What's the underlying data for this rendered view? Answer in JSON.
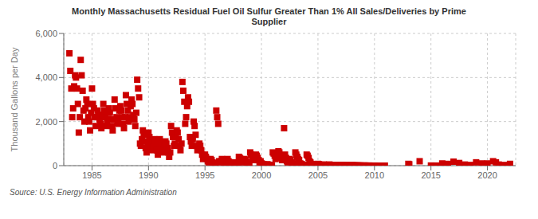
{
  "chart_data": {
    "type": "scatter",
    "title": "Monthly Massachusetts Residual Fuel Oil Sulfur Greater Than 1% All Sales/Deliveries by Prime\nSupplier",
    "ylabel": "Thousand Gallons per Day",
    "annotations": [
      "Source: U.S. Energy Information Administration"
    ],
    "color": "#cc0000",
    "marker": "square",
    "grid": true,
    "xlim": [
      1982.5,
      2022.5
    ],
    "xticks": [
      1985,
      1990,
      1995,
      2000,
      2005,
      2010,
      2015,
      2020
    ],
    "ylim": [
      0,
      6000
    ],
    "yticks": [
      0,
      {
        "value": 2000,
        "label": "2,000"
      },
      {
        "value": 4000,
        "label": "4,000"
      },
      {
        "value": 6000,
        "label": "6,000"
      }
    ],
    "x": [
      1983.0,
      1983.08,
      1983.17,
      1983.25,
      1983.33,
      1983.42,
      1983.5,
      1983.58,
      1983.67,
      1983.75,
      1983.83,
      1983.92,
      1984.0,
      1984.08,
      1984.17,
      1984.25,
      1984.33,
      1984.42,
      1984.5,
      1984.58,
      1984.67,
      1984.75,
      1984.83,
      1984.92,
      1985.0,
      1985.08,
      1985.17,
      1985.25,
      1985.33,
      1985.42,
      1985.5,
      1985.58,
      1985.67,
      1985.75,
      1985.83,
      1985.92,
      1986.0,
      1986.08,
      1986.17,
      1986.25,
      1986.33,
      1986.42,
      1986.5,
      1986.58,
      1986.67,
      1986.75,
      1986.83,
      1986.92,
      1987.0,
      1987.08,
      1987.17,
      1987.25,
      1987.33,
      1987.42,
      1987.5,
      1987.58,
      1987.67,
      1987.75,
      1987.83,
      1987.92,
      1988.0,
      1988.08,
      1988.17,
      1988.25,
      1988.33,
      1988.42,
      1988.5,
      1988.58,
      1988.67,
      1988.75,
      1988.83,
      1988.92,
      1989.0,
      1989.08,
      1989.17,
      1989.25,
      1989.33,
      1989.42,
      1989.5,
      1989.58,
      1989.67,
      1989.75,
      1989.83,
      1989.92,
      1990.0,
      1990.08,
      1990.17,
      1990.25,
      1990.33,
      1990.42,
      1990.5,
      1990.58,
      1990.67,
      1990.75,
      1990.83,
      1990.92,
      1991.0,
      1991.08,
      1991.17,
      1991.25,
      1991.33,
      1991.42,
      1991.5,
      1991.58,
      1991.67,
      1991.75,
      1991.83,
      1991.92,
      1992.0,
      1992.08,
      1992.17,
      1992.25,
      1992.33,
      1992.42,
      1992.5,
      1992.58,
      1992.67,
      1992.75,
      1992.83,
      1992.92,
      1993.0,
      1993.08,
      1993.17,
      1993.25,
      1993.33,
      1993.42,
      1993.5,
      1993.58,
      1993.67,
      1993.75,
      1993.83,
      1993.92,
      1994.0,
      1994.08,
      1994.17,
      1994.25,
      1994.33,
      1994.42,
      1994.5,
      1994.58,
      1994.67,
      1994.75,
      1994.83,
      1994.92,
      1995.0,
      1995.08,
      1995.17,
      1995.25,
      1995.33,
      1995.42,
      1995.5,
      1995.58,
      1995.67,
      1995.75,
      1995.83,
      1995.92,
      1996.0,
      1996.08,
      1996.17,
      1996.25,
      1996.33,
      1996.42,
      1996.5,
      1996.58,
      1996.67,
      1996.75,
      1996.83,
      1996.92,
      1997.0,
      1997.08,
      1997.17,
      1997.25,
      1997.33,
      1997.42,
      1997.5,
      1997.58,
      1997.67,
      1997.75,
      1997.83,
      1997.92,
      1998.0,
      1998.08,
      1998.17,
      1998.25,
      1998.33,
      1998.42,
      1998.5,
      1998.58,
      1998.67,
      1998.75,
      1998.83,
      1998.92,
      1999.0,
      1999.08,
      1999.17,
      1999.25,
      1999.33,
      1999.42,
      1999.5,
      1999.58,
      1999.67,
      1999.75,
      1999.83,
      1999.92,
      2000.0,
      2000.08,
      2000.17,
      2000.25,
      2000.33,
      2000.42,
      2000.5,
      2000.58,
      2000.67,
      2000.75,
      2000.83,
      2000.92,
      2001.0,
      2001.08,
      2001.17,
      2001.25,
      2001.33,
      2001.42,
      2001.5,
      2001.58,
      2001.67,
      2001.75,
      2001.83,
      2001.92,
      2002.0,
      2002.08,
      2002.17,
      2002.25,
      2002.33,
      2002.42,
      2002.5,
      2002.58,
      2002.67,
      2002.75,
      2002.83,
      2002.92,
      2003.0,
      2003.08,
      2003.17,
      2003.25,
      2003.33,
      2003.42,
      2003.5,
      2003.58,
      2003.67,
      2003.75,
      2003.83,
      2003.92,
      2004.0,
      2004.08,
      2004.17,
      2004.25,
      2004.33,
      2004.42,
      2004.5,
      2004.58,
      2004.67,
      2004.75,
      2004.83,
      2004.92,
      2005.0,
      2005.08,
      2005.17,
      2005.25,
      2005.33,
      2005.42,
      2005.5,
      2005.58,
      2005.67,
      2005.75,
      2005.83,
      2005.92,
      2006.0,
      2006.08,
      2006.17,
      2006.25,
      2006.33,
      2006.42,
      2006.5,
      2006.58,
      2006.67,
      2006.75,
      2006.83,
      2006.92,
      2007.0,
      2007.08,
      2007.17,
      2007.25,
      2007.33,
      2007.42,
      2007.5,
      2007.58,
      2007.67,
      2007.75,
      2007.83,
      2007.92,
      2008.0,
      2008.08,
      2008.17,
      2008.25,
      2008.33,
      2008.42,
      2008.5,
      2008.58,
      2008.67,
      2008.75,
      2008.83,
      2008.92,
      2009.0,
      2009.08,
      2009.17,
      2009.25,
      2009.33,
      2009.42,
      2009.5,
      2009.58,
      2009.67,
      2009.75,
      2009.83,
      2009.92,
      2010.0,
      2010.08,
      2010.17,
      2010.25,
      2010.33,
      2010.42,
      2010.5,
      2010.58,
      2010.67,
      2010.75,
      2010.83,
      2010.92,
      2013.0,
      2013.08,
      2014.0,
      2015.0,
      2015.5,
      2016.0,
      2016.5,
      2017.0,
      2017.5,
      2018.0,
      2018.5,
      2019.0,
      2019.5,
      2020.0,
      2020.5,
      2020.75,
      2021.0,
      2021.5,
      2022.0
    ],
    "values": [
      5100,
      4300,
      3500,
      2200,
      2600,
      3600,
      4100,
      4000,
      3500,
      2800,
      1500,
      2200,
      4800,
      4100,
      3400,
      2500,
      2000,
      2600,
      3000,
      2800,
      2200,
      2000,
      1600,
      2400,
      3500,
      2800,
      2600,
      2200,
      1800,
      2200,
      2500,
      2300,
      2100,
      1900,
      1700,
      2300,
      2800,
      2500,
      2200,
      1800,
      2000,
      2400,
      2600,
      2400,
      2100,
      1800,
      1600,
      2100,
      3000,
      2600,
      2200,
      1900,
      2100,
      2500,
      2700,
      2500,
      2200,
      1900,
      1700,
      2200,
      3200,
      2800,
      2500,
      2000,
      2200,
      2700,
      3000,
      2800,
      2300,
      2100,
      1800,
      2400,
      3900,
      3500,
      3100,
      1000,
      900,
      1200,
      1600,
      1400,
      1100,
      800,
      600,
      900,
      1500,
      1300,
      1100,
      800,
      700,
      900,
      1200,
      1100,
      900,
      700,
      500,
      700,
      1200,
      1000,
      800,
      600,
      700,
      950,
      1100,
      1000,
      800,
      600,
      400,
      600,
      1800,
      1500,
      1300,
      900,
      1000,
      1300,
      1600,
      1500,
      1200,
      900,
      700,
      1000,
      3800,
      3400,
      2900,
      1900,
      2200,
      2700,
      3100,
      2900,
      1300,
      1100,
      900,
      1200,
      2000,
      1800,
      1400,
      900,
      700,
      800,
      1000,
      900,
      700,
      500,
      300,
      400,
      500,
      400,
      300,
      200,
      150,
      200,
      300,
      250,
      150,
      100,
      80,
      120,
      2500,
      2200,
      1900,
      200,
      150,
      200,
      300,
      200,
      150,
      100,
      80,
      120,
      300,
      200,
      150,
      100,
      80,
      100,
      150,
      120,
      80,
      50,
      30,
      50,
      400,
      350,
      300,
      200,
      150,
      200,
      300,
      250,
      150,
      100,
      70,
      100,
      600,
      500,
      400,
      300,
      250,
      350,
      500,
      450,
      350,
      250,
      150,
      200,
      100,
      80,
      60,
      40,
      30,
      40,
      60,
      50,
      30,
      20,
      15,
      20,
      600,
      550,
      450,
      300,
      400,
      550,
      650,
      600,
      450,
      350,
      250,
      350,
      1700,
      500,
      350,
      200,
      150,
      200,
      300,
      250,
      150,
      100,
      60,
      80,
      600,
      500,
      400,
      300,
      250,
      100,
      80,
      60,
      40,
      30,
      20,
      30,
      500,
      450,
      350,
      200,
      150,
      80,
      60,
      40,
      30,
      20,
      15,
      20,
      80,
      60,
      40,
      30,
      20,
      30,
      50,
      40,
      25,
      15,
      10,
      15,
      50,
      40,
      30,
      20,
      15,
      20,
      30,
      25,
      15,
      10,
      8,
      10,
      30,
      25,
      20,
      15,
      10,
      15,
      20,
      15,
      10,
      8,
      5,
      8,
      20,
      15,
      10,
      8,
      5,
      8,
      10,
      8,
      5,
      3,
      2,
      3,
      5,
      4,
      3,
      2,
      1,
      2,
      3,
      2,
      1,
      1,
      1,
      1,
      2,
      1,
      1,
      1,
      1,
      1,
      1,
      1,
      1,
      1,
      1,
      1,
      80,
      60,
      200,
      5,
      3,
      100,
      80,
      180,
      120,
      50,
      30,
      150,
      100,
      100,
      200,
      150,
      50,
      30,
      80
    ]
  }
}
